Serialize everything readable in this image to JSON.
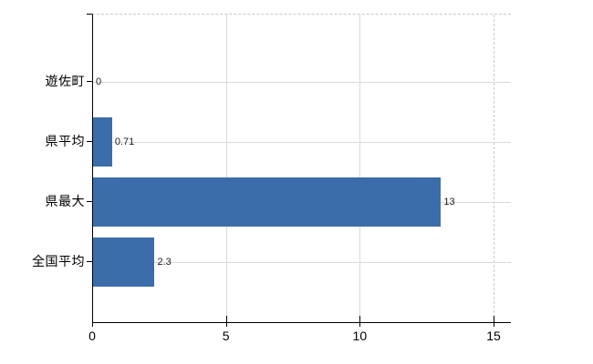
{
  "chart_data": {
    "type": "bar",
    "orientation": "horizontal",
    "title": "",
    "categories": [
      "遊佐町",
      "県平均",
      "県最大",
      "全国平均"
    ],
    "values": [
      0,
      0.71,
      13,
      2.3
    ],
    "value_labels": [
      "0",
      "0.71",
      "13",
      "2.3"
    ],
    "x_tick_labels": [
      "0",
      "5",
      "10",
      "15"
    ],
    "x_tick_values": [
      0,
      5,
      10,
      15
    ],
    "xlim": [
      0,
      15.6
    ],
    "grid": true,
    "legend": false,
    "colors": {
      "bar": "#3b6daa",
      "axis": "#000000",
      "gridline_solid": "#d8dcd6",
      "gridline_dashed": "#cbc8cb",
      "value_label_text": "#1a1a1a",
      "tick_label_text": "#000000",
      "background": "#ffffff"
    }
  }
}
